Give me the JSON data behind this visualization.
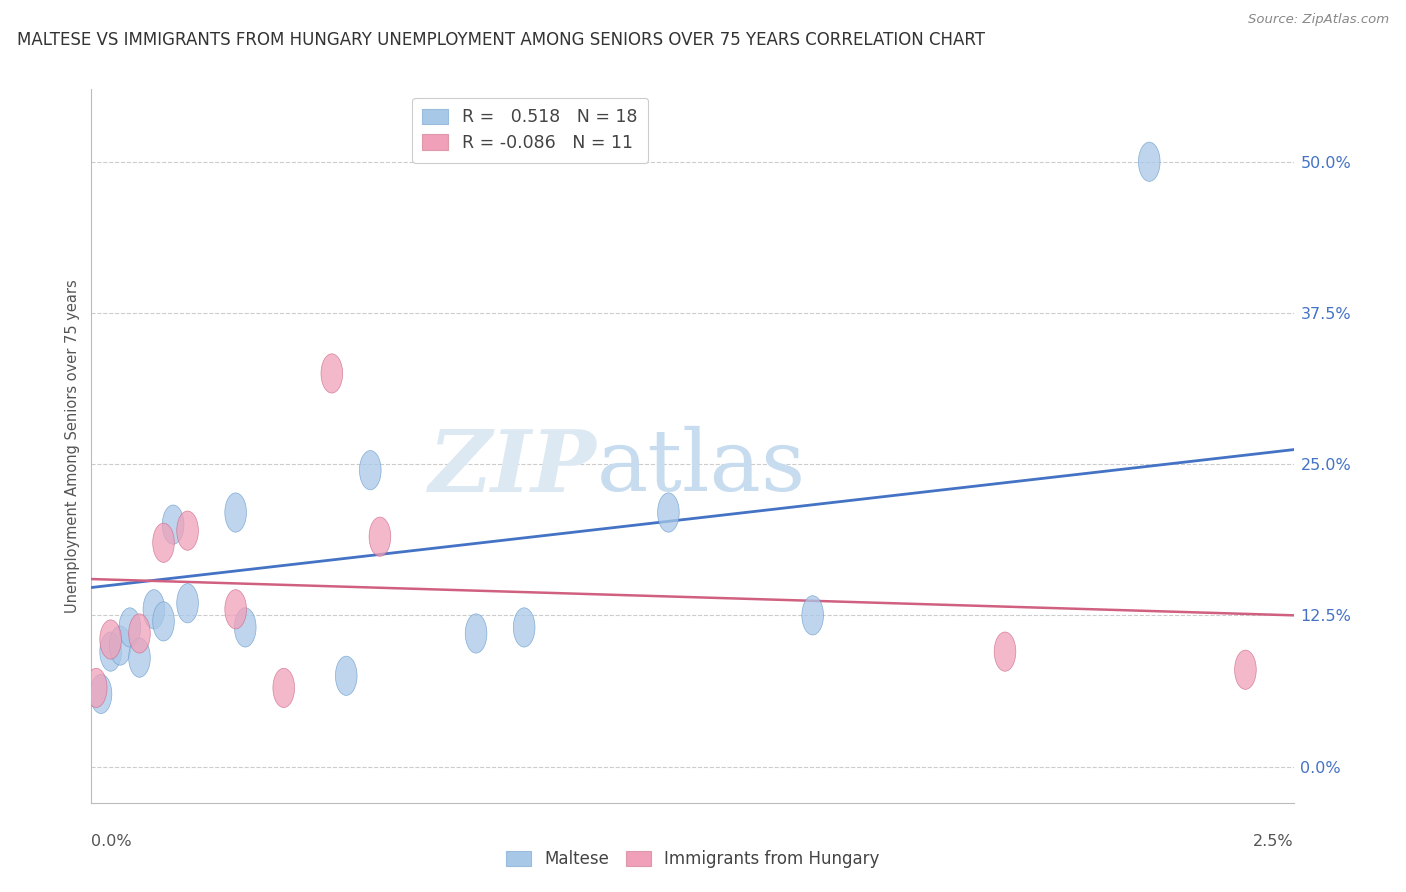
{
  "title": "MALTESE VS IMMIGRANTS FROM HUNGARY UNEMPLOYMENT AMONG SENIORS OVER 75 YEARS CORRELATION CHART",
  "source": "Source: ZipAtlas.com",
  "ylabel": "Unemployment Among Seniors over 75 years",
  "ytick_values": [
    0.0,
    0.125,
    0.25,
    0.375,
    0.5
  ],
  "xmin": 0.0,
  "xmax": 0.025,
  "ymin": -0.03,
  "ymax": 0.56,
  "legend_blue_r": "0.518",
  "legend_blue_n": "18",
  "legend_pink_r": "-0.086",
  "legend_pink_n": "11",
  "blue_color": "#A8C8E8",
  "pink_color": "#F0A0B8",
  "line_blue": "#4472C4",
  "line_pink": "#D06080",
  "watermark_zip": "ZIP",
  "watermark_atlas": "atlas",
  "maltese_x": [
    0.0002,
    0.0004,
    0.0006,
    0.0008,
    0.001,
    0.0013,
    0.0015,
    0.0017,
    0.002,
    0.003,
    0.0032,
    0.0053,
    0.0058,
    0.008,
    0.009,
    0.012,
    0.015,
    0.022
  ],
  "maltese_y": [
    0.06,
    0.095,
    0.1,
    0.115,
    0.09,
    0.13,
    0.12,
    0.2,
    0.135,
    0.21,
    0.115,
    0.075,
    0.245,
    0.11,
    0.115,
    0.21,
    0.125,
    0.5
  ],
  "hungary_x": [
    0.0001,
    0.0004,
    0.001,
    0.0015,
    0.002,
    0.003,
    0.004,
    0.005,
    0.006,
    0.019,
    0.024
  ],
  "hungary_y": [
    0.065,
    0.105,
    0.11,
    0.185,
    0.195,
    0.13,
    0.065,
    0.325,
    0.19,
    0.095,
    0.08
  ],
  "blue_line_x0": 0.0,
  "blue_line_y0": 0.148,
  "blue_line_x1": 0.025,
  "blue_line_y1": 0.262,
  "pink_line_x0": 0.0,
  "pink_line_y0": 0.155,
  "pink_line_x1": 0.025,
  "pink_line_y1": 0.125
}
